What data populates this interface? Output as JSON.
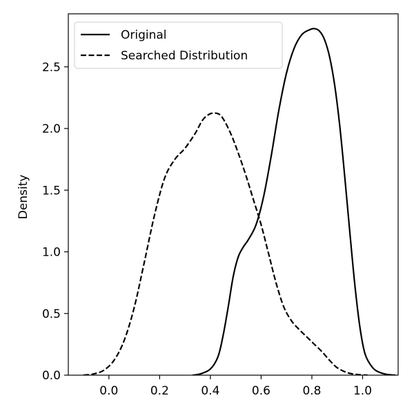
{
  "chart_data": {
    "type": "line",
    "title": "",
    "xlabel": "",
    "ylabel": "Density",
    "xlim": [
      -0.16,
      1.14
    ],
    "ylim": [
      0,
      2.93
    ],
    "xticks": [
      0.0,
      0.2,
      0.4,
      0.6,
      0.8,
      1.0
    ],
    "xtick_labels": [
      "0.0",
      "0.2",
      "0.4",
      "0.6",
      "0.8",
      "1.0"
    ],
    "yticks": [
      0.0,
      0.5,
      1.0,
      1.5,
      2.0,
      2.5
    ],
    "ytick_labels": [
      "0.0",
      "0.5",
      "1.0",
      "1.5",
      "2.0",
      "2.5"
    ],
    "grid": false,
    "legend_position": "top-left",
    "series": [
      {
        "name": "Original",
        "color": "#000000",
        "line_style": "solid",
        "x": [
          0.33,
          0.36,
          0.4,
          0.43,
          0.45,
          0.47,
          0.49,
          0.51,
          0.53,
          0.55,
          0.58,
          0.61,
          0.64,
          0.67,
          0.7,
          0.73,
          0.76,
          0.79,
          0.81,
          0.83,
          0.85,
          0.87,
          0.89,
          0.91,
          0.93,
          0.95,
          0.97,
          0.99,
          1.01,
          1.04,
          1.07,
          1.1,
          1.13
        ],
        "y": [
          0.0,
          0.01,
          0.05,
          0.15,
          0.32,
          0.55,
          0.8,
          0.96,
          1.04,
          1.1,
          1.22,
          1.45,
          1.78,
          2.15,
          2.45,
          2.65,
          2.76,
          2.8,
          2.81,
          2.79,
          2.72,
          2.58,
          2.35,
          2.02,
          1.6,
          1.15,
          0.72,
          0.38,
          0.17,
          0.06,
          0.02,
          0.005,
          0.0
        ]
      },
      {
        "name": "Searched Distribution",
        "color": "#000000",
        "line_style": "dashed",
        "x": [
          -0.1,
          -0.06,
          -0.02,
          0.02,
          0.06,
          0.1,
          0.14,
          0.18,
          0.22,
          0.26,
          0.3,
          0.34,
          0.37,
          0.4,
          0.43,
          0.45,
          0.48,
          0.51,
          0.54,
          0.57,
          0.6,
          0.63,
          0.66,
          0.69,
          0.72,
          0.75,
          0.78,
          0.81,
          0.84,
          0.87,
          0.9,
          0.94,
          0.98,
          1.02
        ],
        "y": [
          0.0,
          0.01,
          0.04,
          0.12,
          0.28,
          0.55,
          0.92,
          1.3,
          1.6,
          1.75,
          1.84,
          1.96,
          2.07,
          2.12,
          2.12,
          2.08,
          1.96,
          1.8,
          1.62,
          1.42,
          1.22,
          0.98,
          0.74,
          0.55,
          0.44,
          0.37,
          0.31,
          0.25,
          0.19,
          0.12,
          0.06,
          0.02,
          0.005,
          0.0
        ]
      }
    ]
  }
}
